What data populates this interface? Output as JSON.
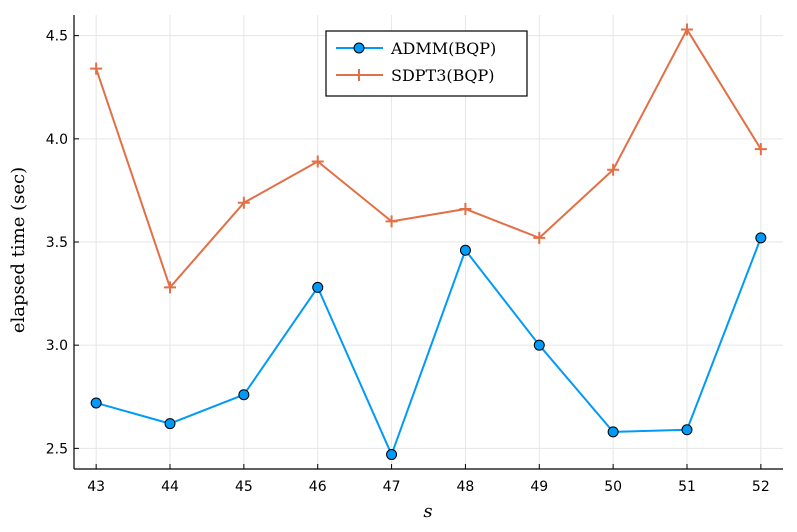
{
  "chart_data": {
    "type": "line",
    "title": "",
    "xlabel": "s",
    "ylabel": "elapsed time (sec)",
    "x": [
      43,
      44,
      45,
      46,
      47,
      48,
      49,
      50,
      51,
      52
    ],
    "xlim": [
      42.7,
      52.3
    ],
    "ylim": [
      2.4,
      4.6
    ],
    "xticks": [
      "43",
      "44",
      "45",
      "46",
      "47",
      "48",
      "49",
      "50",
      "51",
      "52"
    ],
    "yticks": [
      "2.5",
      "3.0",
      "3.5",
      "4.0",
      "4.5"
    ],
    "grid": true,
    "legend_position": "top-center",
    "series": [
      {
        "name": "ADMM(BQP)",
        "marker": "circle",
        "color": "#009af9",
        "values": [
          2.72,
          2.62,
          2.76,
          3.28,
          2.47,
          3.46,
          3.0,
          2.58,
          2.59,
          3.52
        ]
      },
      {
        "name": "SDPT3(BQP)",
        "marker": "cross",
        "color": "#e26f46",
        "values": [
          4.34,
          3.28,
          3.69,
          3.89,
          3.6,
          3.66,
          3.52,
          3.85,
          4.53,
          3.95
        ]
      }
    ]
  }
}
